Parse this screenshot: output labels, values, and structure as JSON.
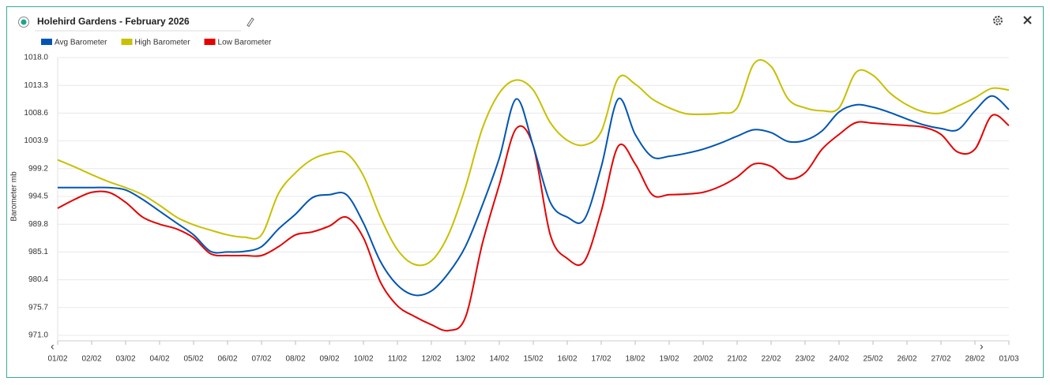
{
  "header": {
    "title": "Holehird Gardens - February 2026"
  },
  "chart_data": {
    "type": "line",
    "ylabel": "Barometer mb",
    "categories": [
      "01/02",
      null,
      "02/02",
      null,
      "03/02",
      null,
      "04/02",
      null,
      "05/02",
      null,
      "06/02",
      null,
      "07/02",
      null,
      "08/02",
      null,
      "09/02",
      null,
      "10/02",
      null,
      "11/02",
      null,
      "12/02",
      null,
      "13/02",
      null,
      "14/02",
      null,
      "15/02",
      null,
      "16/02",
      null,
      "17/02",
      null,
      "18/02",
      null,
      "19/02",
      null,
      "20/02",
      null,
      "21/02",
      null,
      "22/02",
      null,
      "23/02",
      null,
      "24/02",
      null,
      "25/02",
      null,
      "26/02",
      null,
      "27/02",
      null,
      "28/02",
      null,
      "01/03"
    ],
    "series": [
      {
        "name": "Avg Barometer",
        "color": "#0055b3",
        "values": [
          996.0,
          996.0,
          996.0,
          996.0,
          995.6,
          994.0,
          992.0,
          990.0,
          988.0,
          985.2,
          985.1,
          985.2,
          986.0,
          989.0,
          991.5,
          994.3,
          994.8,
          994.8,
          990.0,
          983.5,
          979.5,
          977.8,
          978.5,
          981.5,
          986.0,
          993.0,
          1001.0,
          1011.0,
          1003.0,
          993.5,
          991.0,
          990.6,
          999.5,
          1011.0,
          1005.0,
          1001.2,
          1001.3,
          1001.8,
          1002.5,
          1003.5,
          1004.7,
          1005.8,
          1005.3,
          1003.8,
          1004.0,
          1005.6,
          1008.8,
          1010.0,
          1009.6,
          1008.7,
          1007.6,
          1006.6,
          1006.0,
          1005.8,
          1009.0,
          1011.5,
          1009.2
        ]
      },
      {
        "name": "High Barometer",
        "color": "#c8c000",
        "values": [
          1000.7,
          999.5,
          998.2,
          997.0,
          996.0,
          994.8,
          993.0,
          991.0,
          989.7,
          988.8,
          988.0,
          987.6,
          988.0,
          995.0,
          998.5,
          1000.8,
          1001.8,
          1001.8,
          998.0,
          991.0,
          985.5,
          983.0,
          983.6,
          988.0,
          996.0,
          1006.0,
          1012.0,
          1014.2,
          1012.5,
          1007.0,
          1004.0,
          1003.2,
          1005.5,
          1014.5,
          1013.5,
          1011.0,
          1009.5,
          1008.5,
          1008.4,
          1008.6,
          1009.5,
          1017.0,
          1016.5,
          1011.0,
          1009.5,
          1009.0,
          1009.5,
          1015.5,
          1015.0,
          1012.0,
          1010.0,
          1008.8,
          1008.6,
          1009.8,
          1011.2,
          1012.8,
          1012.5
        ]
      },
      {
        "name": "Low Barometer",
        "color": "#e60000",
        "values": [
          992.5,
          994.0,
          995.2,
          995.2,
          993.5,
          991.0,
          989.8,
          989.0,
          987.5,
          984.8,
          984.5,
          984.5,
          984.5,
          986.0,
          988.0,
          988.5,
          989.5,
          991.0,
          987.5,
          980.0,
          976.0,
          974.2,
          972.8,
          971.8,
          974.0,
          986.5,
          996.5,
          1006.0,
          1003.0,
          988.0,
          984.0,
          983.5,
          992.0,
          1003.0,
          1000.0,
          994.8,
          994.8,
          994.9,
          995.2,
          996.2,
          997.8,
          1000.0,
          999.6,
          997.5,
          998.5,
          1002.5,
          1005.0,
          1007.0,
          1006.9,
          1006.7,
          1006.5,
          1006.2,
          1005.0,
          1002.0,
          1002.5,
          1008.2,
          1006.5
        ]
      }
    ],
    "ylim": [
      971,
      1018
    ],
    "yticks": [
      {
        "value": 971,
        "label": "971.0"
      },
      975.7,
      980.4,
      985.1,
      989.8,
      994.5,
      999.2,
      1003.9,
      1008.6,
      1013.3,
      {
        "value": 1018,
        "label": "1018.0"
      }
    ],
    "grid": true,
    "legend": "top-left"
  }
}
